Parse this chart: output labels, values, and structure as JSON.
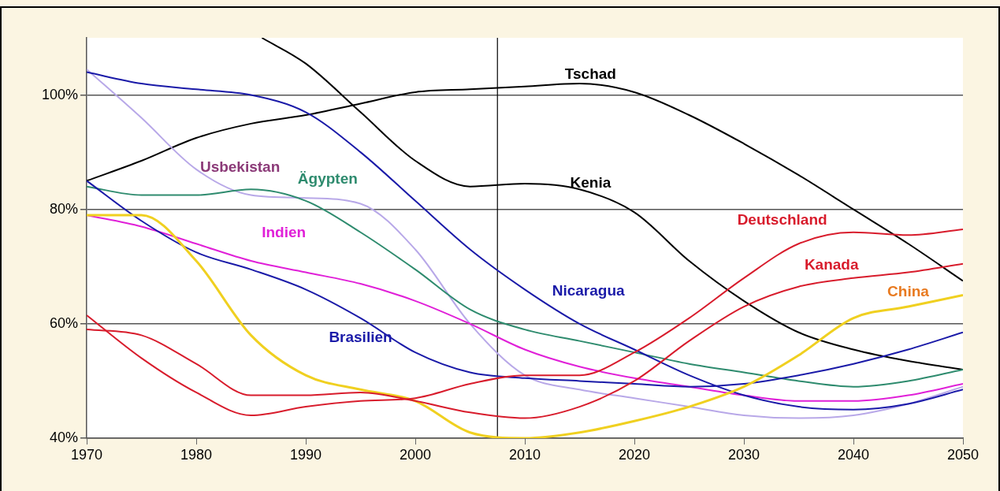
{
  "chart_data": {
    "type": "line",
    "x": [
      1970,
      1975,
      1980,
      1985,
      1990,
      1995,
      2000,
      2005,
      2010,
      2015,
      2020,
      2025,
      2030,
      2035,
      2040,
      2045,
      2050
    ],
    "xlim": [
      1970,
      2050
    ],
    "xticks": [
      1970,
      1980,
      1990,
      2000,
      2010,
      2020,
      2030,
      2040,
      2050
    ],
    "ylim": [
      40,
      110
    ],
    "yticks": [
      {
        "value": 40,
        "label": "40%"
      },
      {
        "value": 60,
        "label": "60%"
      },
      {
        "value": 80,
        "label": "80%"
      },
      {
        "value": 100,
        "label": "100%"
      }
    ],
    "grid": "y",
    "legend": false,
    "marker": "none",
    "line_style": "solid",
    "ref_lines": [
      {
        "axis": "x",
        "value": 2007.5,
        "color": "#000000"
      }
    ],
    "series": [
      {
        "name": "Tschad",
        "color": "#000000",
        "values": [
          85,
          88.5,
          92.5,
          95,
          96.5,
          98.5,
          100.5,
          101,
          101.5,
          102,
          100.5,
          96.5,
          91.5,
          86,
          80,
          74,
          67.5
        ]
      },
      {
        "name": "Kenia",
        "color": "#000000",
        "x": [
          1986,
          1990,
          1995,
          2000,
          2005,
          2010,
          2015,
          2020,
          2025,
          2030,
          2035,
          2040,
          2045,
          2050
        ],
        "values": [
          110,
          105.5,
          97,
          88.5,
          84,
          84.5,
          83.5,
          79.5,
          71,
          64,
          58.5,
          55.5,
          53.5,
          52
        ]
      },
      {
        "name": "Usbekistan",
        "color": "#b8a8e8",
        "values": [
          104.5,
          96,
          87,
          82.5,
          82,
          81,
          73,
          60,
          51,
          48.5,
          47,
          45.5,
          44,
          43.5,
          44,
          46,
          49
        ]
      },
      {
        "name": "Ägypten",
        "color": "#2e8b6e",
        "values": [
          84,
          82.5,
          82.5,
          83.5,
          81.5,
          76,
          69.5,
          62.5,
          59,
          57,
          55,
          53,
          51.5,
          50,
          49,
          50,
          52
        ]
      },
      {
        "name": "Indien",
        "color": "#e020d8",
        "values": [
          79,
          77,
          74,
          71,
          69,
          67,
          64,
          60,
          55.5,
          52.5,
          50.5,
          49,
          47.5,
          46.5,
          46.5,
          47.5,
          49.5
        ]
      },
      {
        "name": "Nicaragua",
        "color": "#1a1aa8",
        "values": [
          104,
          102,
          101,
          100,
          97,
          90,
          81.5,
          73,
          66,
          60,
          55.5,
          51,
          47.5,
          45.5,
          45,
          46,
          48.5
        ]
      },
      {
        "name": "Brasilien",
        "color": "#1a1aa8",
        "values": [
          85,
          78,
          72.5,
          69.5,
          66,
          61,
          55,
          51.5,
          50.5,
          50,
          49.5,
          49,
          49.5,
          51,
          53,
          55.5,
          58.5
        ]
      },
      {
        "name": "China",
        "color": "#f0d020",
        "values": [
          79,
          79,
          71,
          58,
          51,
          48.5,
          46.5,
          41,
          40,
          41,
          43,
          45.5,
          49,
          54.5,
          61,
          63,
          65
        ]
      },
      {
        "name": "Deutschland",
        "color": "#d81c2c",
        "values": [
          61.5,
          54,
          48,
          44,
          45.5,
          46.5,
          47,
          49.5,
          51,
          51,
          55,
          61,
          68,
          74,
          76,
          75.5,
          76.5
        ]
      },
      {
        "name": "Kanada",
        "color": "#d81c2c",
        "values": [
          59,
          58,
          53,
          47.5,
          47.5,
          48,
          46.5,
          44.5,
          43.5,
          45.5,
          50,
          57,
          63,
          66.5,
          68,
          69,
          70.5
        ]
      }
    ]
  }
}
